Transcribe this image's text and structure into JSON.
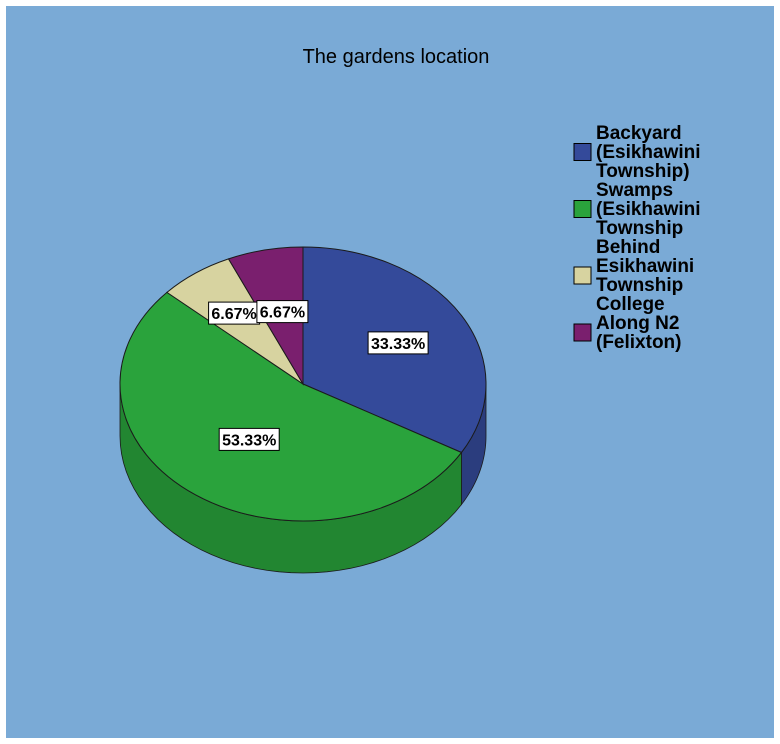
{
  "chart_data": {
    "type": "pie",
    "title": "The gardens location",
    "categories": [
      "Backyard (Esikhawini Township)",
      "Swamps (Esikhawini Township",
      "Behind Esikhawini Township College",
      "Along N2 (Felixton)"
    ],
    "values": [
      33.33,
      53.33,
      6.67,
      6.67
    ],
    "data_labels": [
      "33.33%",
      "53.33%",
      "6.67%",
      "6.67%"
    ],
    "colors": [
      "#344a9a",
      "#2aa33c",
      "#d7d3a0",
      "#7a1f6e"
    ],
    "legend_lines": [
      [
        "Backyard",
        "(Esikhawini",
        "Township)"
      ],
      [
        "Swamps",
        "(Esikhawini",
        "Township"
      ],
      [
        "Behind",
        "Esikhawini",
        "Township",
        "College"
      ],
      [
        "Along N2",
        "(Felixton)"
      ]
    ],
    "legend_position": "right",
    "style": "3d-pie",
    "background": "#7aaad6"
  }
}
